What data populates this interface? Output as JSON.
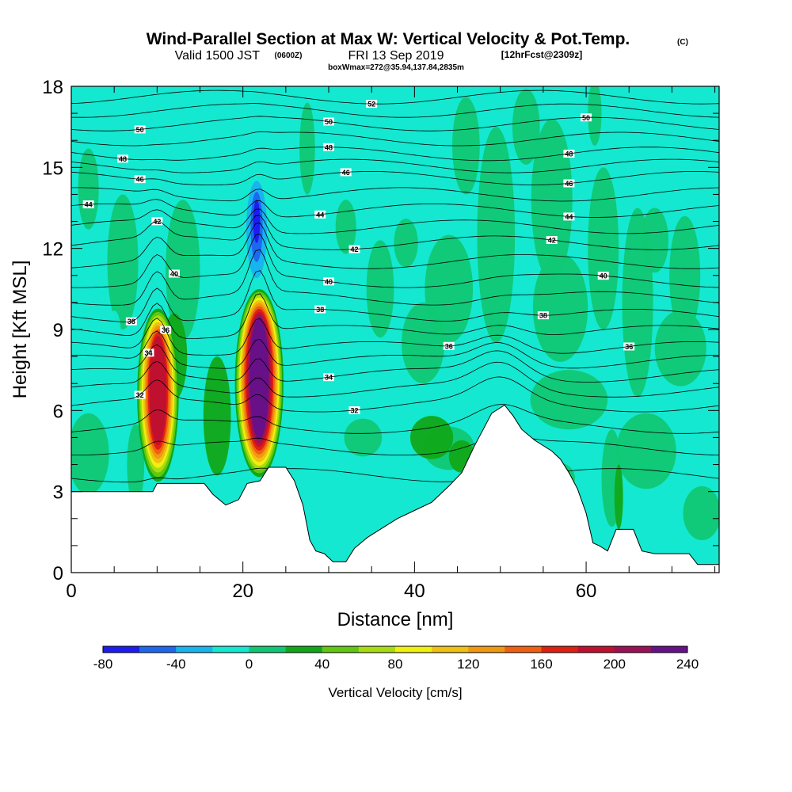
{
  "title": {
    "main": "Wind-Parallel Section at Max W: Vertical Velocity & Pot.Temp.",
    "copyright": "(C)",
    "valid_prefix": "Valid 1500 JST",
    "valid_z": "(0600Z)",
    "valid_date": "FRI 13 Sep 2019",
    "forecast": "[12hrFcst@2309z]",
    "box": "boxWmax=272@35.94,137.84,2835m"
  },
  "chart_data": {
    "type": "heatmap",
    "xlabel": "Distance [nm]",
    "ylabel": "Height [Kft MSL]",
    "xlim": [
      0,
      75.5
    ],
    "ylim": [
      0,
      18
    ],
    "x_ticks": [
      "0",
      "20",
      "40",
      "60"
    ],
    "y_ticks": [
      "0",
      "3",
      "6",
      "9",
      "12",
      "15",
      "18"
    ],
    "colorbar": {
      "title": "Vertical Velocity [cm/s]",
      "tick_labels": [
        "-80",
        "-40",
        "0",
        "40",
        "80",
        "120",
        "160",
        "200",
        "240"
      ],
      "levels": [
        -80,
        -60,
        -40,
        -20,
        0,
        20,
        40,
        60,
        80,
        100,
        120,
        140,
        160,
        180,
        200,
        220,
        240
      ],
      "colors": [
        "#1c1cf0",
        "#1c69f0",
        "#18b4f0",
        "#14e8d0",
        "#10c874",
        "#10a818",
        "#60c810",
        "#a8dc10",
        "#f0f010",
        "#f0c010",
        "#f09810",
        "#f06010",
        "#e02010",
        "#c01030",
        "#9c1058",
        "#681088"
      ]
    },
    "terrain_kft": [
      [
        0,
        3.0
      ],
      [
        7.5,
        3.0
      ],
      [
        9.5,
        3.0
      ],
      [
        10.0,
        3.3
      ],
      [
        12.0,
        3.3
      ],
      [
        15.5,
        3.3
      ],
      [
        16.5,
        2.9
      ],
      [
        18.0,
        2.5
      ],
      [
        19.5,
        2.7
      ],
      [
        20.5,
        3.3
      ],
      [
        22.0,
        3.4
      ],
      [
        23.0,
        3.9
      ],
      [
        25.0,
        3.9
      ],
      [
        26.0,
        3.4
      ],
      [
        27.0,
        2.5
      ],
      [
        27.8,
        1.2
      ],
      [
        28.5,
        0.8
      ],
      [
        29.5,
        0.7
      ],
      [
        30.5,
        0.4
      ],
      [
        32.0,
        0.4
      ],
      [
        33.0,
        0.9
      ],
      [
        34.5,
        1.3
      ],
      [
        36.0,
        1.6
      ],
      [
        38.0,
        2.0
      ],
      [
        40.0,
        2.3
      ],
      [
        42.0,
        2.6
      ],
      [
        44.0,
        3.2
      ],
      [
        45.5,
        3.7
      ],
      [
        47.0,
        4.7
      ],
      [
        48.0,
        5.3
      ],
      [
        49.0,
        5.9
      ],
      [
        50.5,
        6.2
      ],
      [
        51.5,
        5.8
      ],
      [
        52.5,
        5.3
      ],
      [
        54.0,
        4.9
      ],
      [
        56.0,
        4.5
      ],
      [
        57.0,
        4.2
      ],
      [
        58.0,
        3.7
      ],
      [
        59.0,
        3.1
      ],
      [
        60.0,
        2.2
      ],
      [
        60.8,
        1.1
      ],
      [
        61.5,
        1.0
      ],
      [
        62.5,
        0.8
      ],
      [
        63.5,
        1.6
      ],
      [
        65.5,
        1.6
      ],
      [
        66.5,
        0.8
      ],
      [
        68.0,
        0.7
      ],
      [
        72.0,
        0.7
      ],
      [
        73.0,
        0.3
      ],
      [
        75.5,
        0.3
      ]
    ],
    "theta_contours": [
      {
        "value": "32",
        "y_kft": 6.2
      },
      {
        "value": "34",
        "y_kft": 7.3
      },
      {
        "value": "36",
        "y_kft": 8.3
      },
      {
        "value": "38",
        "y_kft": 9.5
      },
      {
        "value": "40",
        "y_kft": 10.8
      },
      {
        "value": "42",
        "y_kft": 12.2
      },
      {
        "value": "44",
        "y_kft": 13.4
      },
      {
        "value": "46",
        "y_kft": 14.6
      },
      {
        "value": "48",
        "y_kft": 15.5
      },
      {
        "value": "50",
        "y_kft": 16.6
      },
      {
        "value": "52",
        "y_kft": 17.6
      }
    ],
    "updrafts": [
      {
        "x_nm": 10.0,
        "top_kft": 9.9,
        "peak_cm_s": 190
      },
      {
        "x_nm": 21.8,
        "top_kft": 10.6,
        "peak_cm_s": 230
      }
    ],
    "downdrafts": [
      {
        "x_nm": 21.6,
        "y_kft": 12.7,
        "min_cm_s": -60
      }
    ]
  }
}
